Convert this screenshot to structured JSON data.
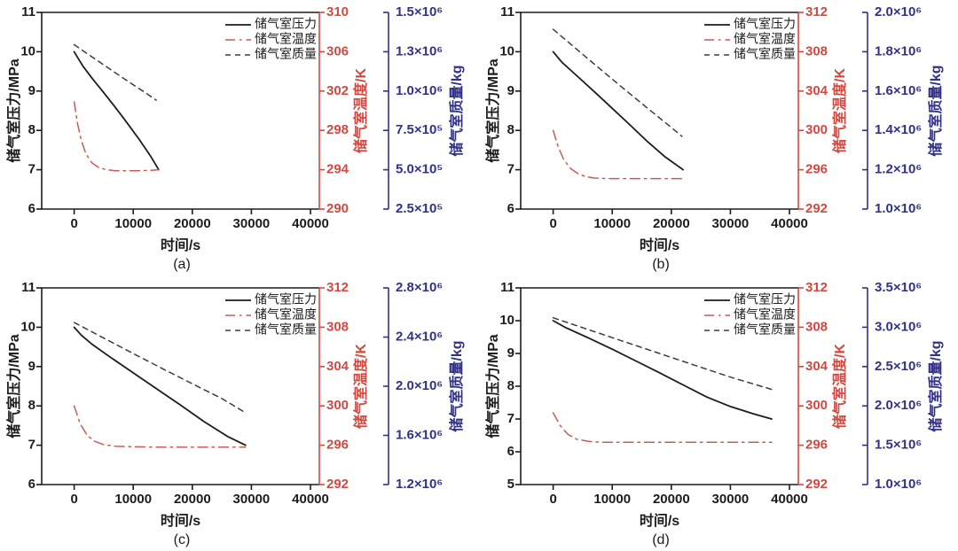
{
  "figure": {
    "xlabel": "时间/s",
    "legend_labels": [
      "储气室压力",
      "储气室温度",
      "储气室质量"
    ],
    "axis_titles": {
      "pressure": "储气室压力/MPa",
      "temperature": "储气室温度/K",
      "mass": "储气室质量/kg"
    },
    "captions": [
      "(a)",
      "(b)",
      "(c)",
      "(d)"
    ],
    "colors": {
      "pressure": "#1c1c1c",
      "temperature": "#d5483f",
      "temperature_line": "#c75d55",
      "mass_axis": "#31318a",
      "mass_line": "#3d3d3d",
      "background": "#ffffff"
    }
  },
  "chart_data": [
    {
      "id": "a",
      "type": "line",
      "caption": "(a)",
      "xlabel": "时间/s",
      "x_ticks": [
        0,
        10000,
        20000,
        30000,
        40000
      ],
      "x_range": [
        -5500,
        41500
      ],
      "left_axis": {
        "label": "储气室压力/MPa",
        "ticks": [
          6,
          7,
          8,
          9,
          10,
          11
        ],
        "range": [
          6,
          11
        ]
      },
      "temp_axis": {
        "label": "储气室温度/K",
        "ticks": [
          290,
          294,
          298,
          302,
          306,
          310
        ],
        "range": [
          290,
          310
        ]
      },
      "mass_axis": {
        "label": "储气室质量/kg",
        "tick_values": [
          250000,
          500000,
          750000,
          1000000,
          1250000,
          1500000
        ],
        "tick_labels": [
          "2.5×10⁵",
          "5.0×10⁵",
          "7.5×10⁵",
          "1.0×10⁶",
          "1.3×10⁶",
          "1.5×10⁶"
        ],
        "range": [
          250000,
          1500000
        ]
      },
      "series": [
        {
          "role": "pressure",
          "name": "储气室压力",
          "axis": "left",
          "style": "solid",
          "points": [
            [
              0,
              10.0
            ],
            [
              600,
              9.85
            ],
            [
              1500,
              9.63
            ],
            [
              3000,
              9.33
            ],
            [
              5000,
              8.96
            ],
            [
              7000,
              8.58
            ],
            [
              9000,
              8.18
            ],
            [
              11000,
              7.77
            ],
            [
              13000,
              7.33
            ],
            [
              14300,
              7.0
            ]
          ]
        },
        {
          "role": "temperature",
          "name": "储气室温度",
          "axis": "temp",
          "style": "dashdot",
          "points": [
            [
              0,
              300.9
            ],
            [
              600,
              298.6
            ],
            [
              1200,
              297.0
            ],
            [
              2000,
              295.6
            ],
            [
              3000,
              294.7
            ],
            [
              4200,
              294.2
            ],
            [
              5500,
              294.0
            ],
            [
              7000,
              293.9
            ],
            [
              9000,
              293.9
            ],
            [
              11000,
              293.9
            ],
            [
              13000,
              293.95
            ],
            [
              14300,
              294.0
            ]
          ]
        },
        {
          "role": "mass",
          "name": "储气室质量",
          "axis": "mass",
          "style": "dashed",
          "points": [
            [
              0,
              1295000
            ],
            [
              2000,
              1243000
            ],
            [
              4000,
              1192000
            ],
            [
              6000,
              1141000
            ],
            [
              8000,
              1090000
            ],
            [
              10000,
              1040000
            ],
            [
              12000,
              991000
            ],
            [
              13900,
              942000
            ]
          ]
        }
      ]
    },
    {
      "id": "b",
      "type": "line",
      "caption": "(b)",
      "xlabel": "时间/s",
      "x_ticks": [
        0,
        10000,
        20000,
        30000,
        40000
      ],
      "x_range": [
        -5500,
        41500
      ],
      "left_axis": {
        "label": "储气室压力/MPa",
        "ticks": [
          6,
          7,
          8,
          9,
          10,
          11
        ],
        "range": [
          6,
          11
        ]
      },
      "temp_axis": {
        "label": "储气室温度/K",
        "ticks": [
          292,
          296,
          300,
          304,
          308,
          312
        ],
        "range": [
          292,
          312
        ]
      },
      "mass_axis": {
        "label": "储气室质量/kg",
        "tick_values": [
          1000000,
          1200000,
          1400000,
          1600000,
          1800000,
          2000000
        ],
        "tick_labels": [
          "1.0×10⁶",
          "1.2×10⁶",
          "1.4×10⁶",
          "1.6×10⁶",
          "1.8×10⁶",
          "2.0×10⁶"
        ],
        "range": [
          1000000,
          2000000
        ]
      },
      "series": [
        {
          "role": "pressure",
          "name": "储气室压力",
          "axis": "left",
          "style": "solid",
          "points": [
            [
              0,
              10.0
            ],
            [
              1500,
              9.73
            ],
            [
              4000,
              9.39
            ],
            [
              7000,
              8.98
            ],
            [
              10000,
              8.56
            ],
            [
              13000,
              8.14
            ],
            [
              16000,
              7.71
            ],
            [
              19000,
              7.32
            ],
            [
              22000,
              7.0
            ]
          ]
        },
        {
          "role": "temperature",
          "name": "储气室温度",
          "axis": "temp",
          "style": "dashdot",
          "points": [
            [
              0,
              300.0
            ],
            [
              800,
              298.4
            ],
            [
              1800,
              297.0
            ],
            [
              3000,
              296.1
            ],
            [
              4200,
              295.6
            ],
            [
              5500,
              295.3
            ],
            [
              7000,
              295.15
            ],
            [
              9000,
              295.1
            ],
            [
              12000,
              295.1
            ],
            [
              16000,
              295.1
            ],
            [
              20000,
              295.1
            ],
            [
              21800,
              295.1
            ]
          ]
        },
        {
          "role": "mass",
          "name": "储气室质量",
          "axis": "mass",
          "style": "dashed",
          "points": [
            [
              0,
              1914000
            ],
            [
              4000,
              1812000
            ],
            [
              8000,
              1711000
            ],
            [
              12000,
              1611000
            ],
            [
              16000,
              1512000
            ],
            [
              20000,
              1415000
            ],
            [
              21800,
              1370000
            ]
          ]
        }
      ]
    },
    {
      "id": "c",
      "type": "line",
      "caption": "(c)",
      "xlabel": "时间/s",
      "x_ticks": [
        0,
        10000,
        20000,
        30000,
        40000
      ],
      "x_range": [
        -5500,
        41500
      ],
      "left_axis": {
        "label": "储气室压力/MPa",
        "ticks": [
          6,
          7,
          8,
          9,
          10,
          11
        ],
        "range": [
          6,
          11
        ]
      },
      "temp_axis": {
        "label": "储气室温度/K",
        "ticks": [
          292,
          296,
          300,
          304,
          308,
          312
        ],
        "range": [
          292,
          312
        ]
      },
      "mass_axis": {
        "label": "储气室质量/kg",
        "tick_values": [
          1200000,
          1600000,
          2000000,
          2400000,
          2800000
        ],
        "tick_labels": [
          "1.2×10⁶",
          "1.6×10⁶",
          "2.0×10⁶",
          "2.4×10⁶",
          "2.8×10⁶"
        ],
        "range": [
          1200000,
          2800000
        ]
      },
      "series": [
        {
          "role": "pressure",
          "name": "储气室压力",
          "axis": "left",
          "style": "solid",
          "points": [
            [
              0,
              10.0
            ],
            [
              1200,
              9.8
            ],
            [
              3000,
              9.57
            ],
            [
              6000,
              9.25
            ],
            [
              10000,
              8.84
            ],
            [
              14000,
              8.43
            ],
            [
              18000,
              8.02
            ],
            [
              22000,
              7.6
            ],
            [
              26000,
              7.22
            ],
            [
              29000,
              7.0
            ]
          ]
        },
        {
          "role": "temperature",
          "name": "储气室温度",
          "axis": "temp",
          "style": "dashdot",
          "points": [
            [
              0,
              300.0
            ],
            [
              1000,
              298.2
            ],
            [
              2200,
              297.0
            ],
            [
              3500,
              296.4
            ],
            [
              5000,
              296.05
            ],
            [
              7000,
              295.9
            ],
            [
              10000,
              295.85
            ],
            [
              15000,
              295.8
            ],
            [
              20000,
              295.8
            ],
            [
              25000,
              295.8
            ],
            [
              29000,
              295.8
            ]
          ]
        },
        {
          "role": "mass",
          "name": "储气室质量",
          "axis": "mass",
          "style": "dashed",
          "points": [
            [
              0,
              2518000
            ],
            [
              5000,
              2392000
            ],
            [
              10000,
              2266000
            ],
            [
              15000,
              2142000
            ],
            [
              20000,
              2020000
            ],
            [
              25000,
              1900000
            ],
            [
              28800,
              1790000
            ]
          ]
        }
      ]
    },
    {
      "id": "d",
      "type": "line",
      "caption": "(d)",
      "xlabel": "时间/s",
      "x_ticks": [
        0,
        10000,
        20000,
        30000,
        40000
      ],
      "x_range": [
        -5500,
        41500
      ],
      "left_axis": {
        "label": "储气室压力/MPa",
        "ticks": [
          5,
          6,
          7,
          8,
          9,
          10,
          11
        ],
        "range": [
          5,
          11
        ]
      },
      "temp_axis": {
        "label": "储气室温度/K",
        "ticks": [
          292,
          296,
          300,
          304,
          308,
          312
        ],
        "range": [
          292,
          312
        ]
      },
      "mass_axis": {
        "label": "储气室质量/kg",
        "tick_values": [
          1000000,
          1500000,
          2000000,
          2500000,
          3000000,
          3500000
        ],
        "tick_labels": [
          "1.0×10⁶",
          "1.5×10⁶",
          "2.0×10⁶",
          "2.5×10⁶",
          "3.0×10⁶",
          "3.5×10⁶"
        ],
        "range": [
          1000000,
          3500000
        ]
      },
      "series": [
        {
          "role": "pressure",
          "name": "储气室压力",
          "axis": "left",
          "style": "solid",
          "points": [
            [
              0,
              10.0
            ],
            [
              2000,
              9.8
            ],
            [
              6000,
              9.47
            ],
            [
              10000,
              9.13
            ],
            [
              14000,
              8.77
            ],
            [
              18000,
              8.41
            ],
            [
              22000,
              8.04
            ],
            [
              26000,
              7.67
            ],
            [
              30000,
              7.38
            ],
            [
              34000,
              7.15
            ],
            [
              37000,
              7.0
            ]
          ]
        },
        {
          "role": "temperature",
          "name": "储气室温度",
          "axis": "temp",
          "style": "dashdot",
          "points": [
            [
              0,
              299.3
            ],
            [
              1200,
              298.0
            ],
            [
              2500,
              297.1
            ],
            [
              4000,
              296.6
            ],
            [
              6000,
              296.4
            ],
            [
              8000,
              296.3
            ],
            [
              12000,
              296.3
            ],
            [
              16000,
              296.3
            ],
            [
              20000,
              296.3
            ],
            [
              25000,
              296.3
            ],
            [
              30000,
              296.3
            ],
            [
              37000,
              296.3
            ]
          ]
        },
        {
          "role": "mass",
          "name": "储气室质量",
          "axis": "mass",
          "style": "dashed",
          "points": [
            [
              0,
              3120000
            ],
            [
              6000,
              2969000
            ],
            [
              12000,
              2818000
            ],
            [
              18000,
              2667000
            ],
            [
              24000,
              2516000
            ],
            [
              30000,
              2366000
            ],
            [
              37000,
              2210000
            ]
          ]
        }
      ]
    }
  ]
}
